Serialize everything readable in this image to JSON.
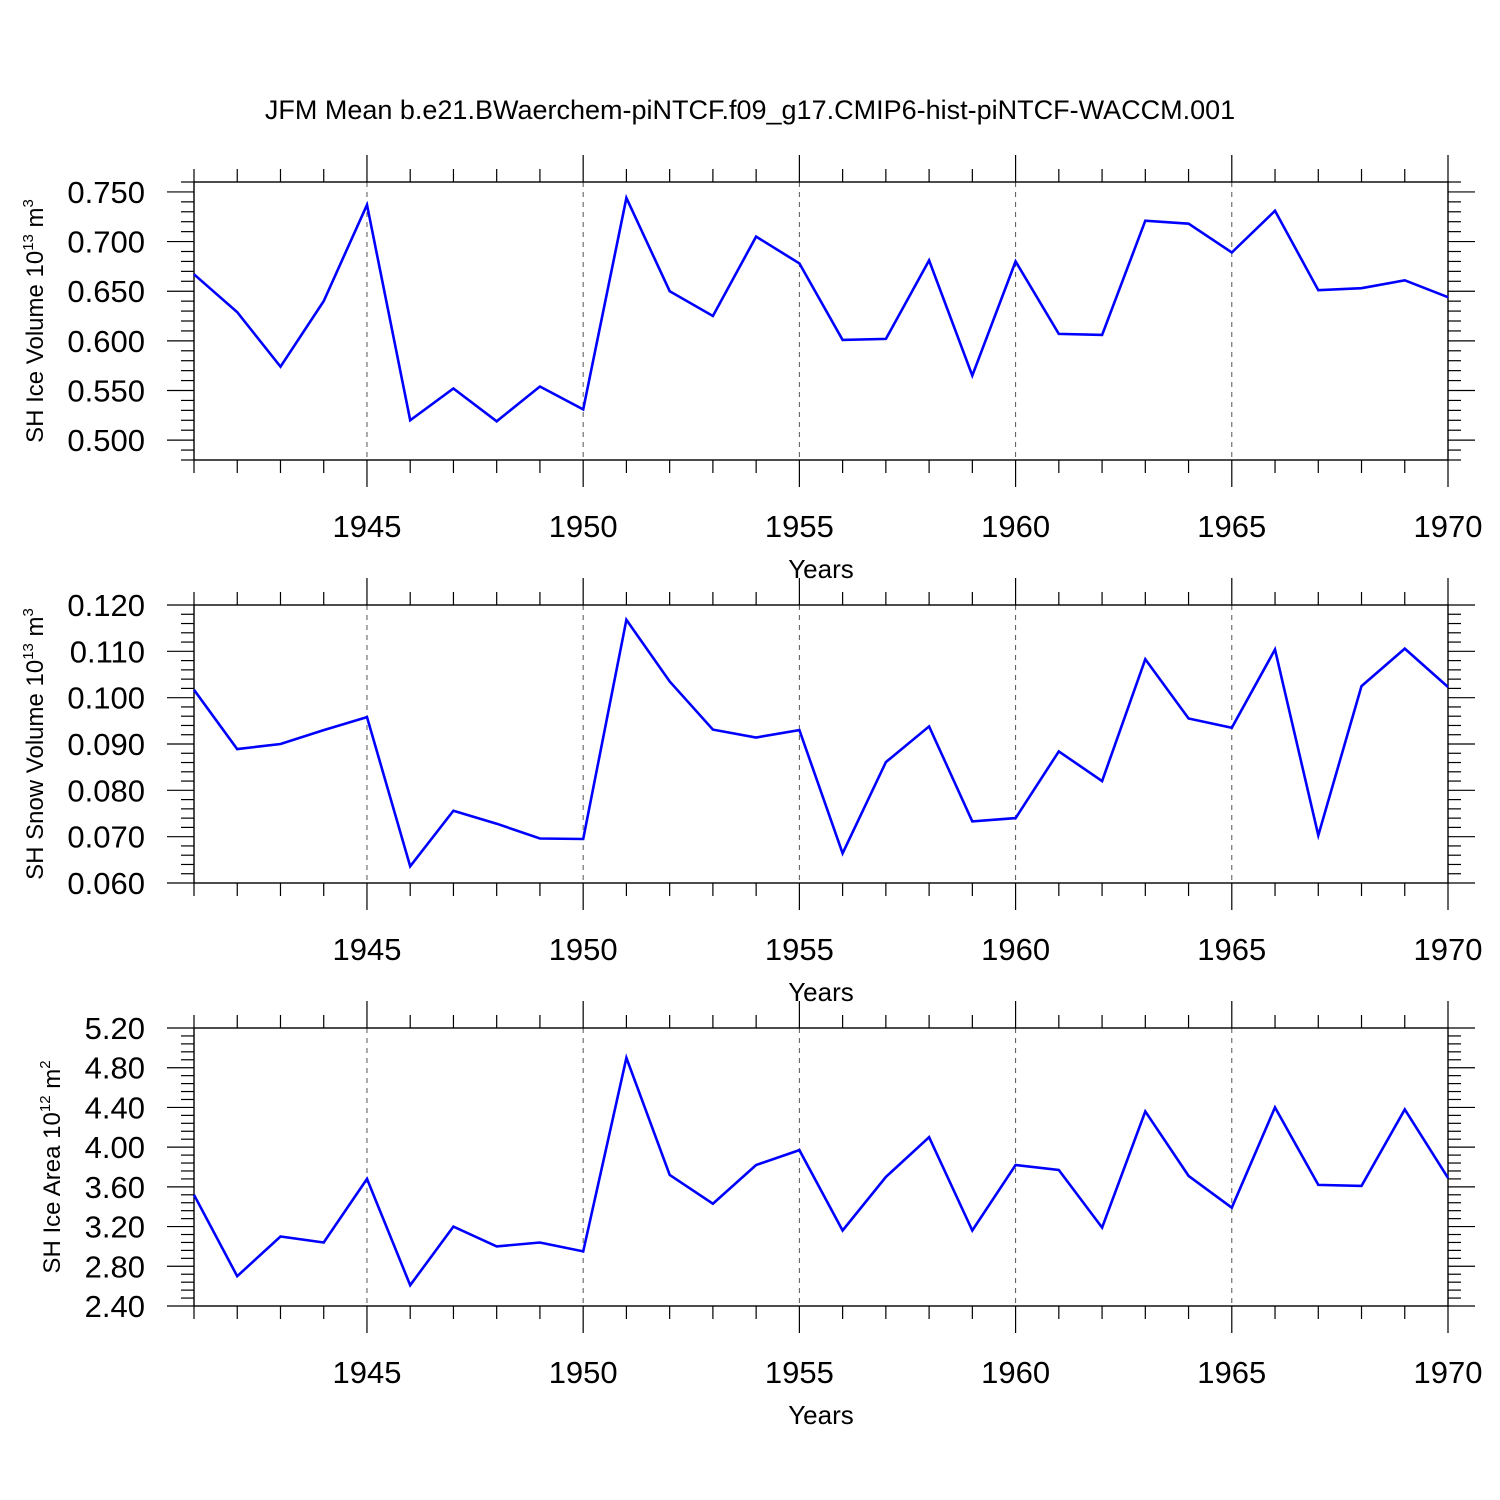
{
  "title": "JFM Mean b.e21.BWaerchem-piNTCF.f09_g17.CMIP6-hist-piNTCF-WACCM.001",
  "chart_data": [
    {
      "type": "line",
      "ylabel": {
        "text": "SH Ice Volume 10",
        "exponent": "13",
        "unit": " m",
        "unit_exponent": "3"
      },
      "xlabel": "Years",
      "xlim": [
        1941,
        1970
      ],
      "ylim": [
        0.48,
        0.76
      ],
      "yticks": [
        "0.500",
        "0.550",
        "0.600",
        "0.650",
        "0.700",
        "0.750"
      ],
      "xticks": [
        "1945",
        "1950",
        "1955",
        "1960",
        "1965",
        "1970"
      ],
      "color": "#0000ff",
      "x": [
        1941,
        1942,
        1943,
        1944,
        1945,
        1946,
        1947,
        1948,
        1949,
        1950,
        1951,
        1952,
        1953,
        1954,
        1955,
        1956,
        1957,
        1958,
        1959,
        1960,
        1961,
        1962,
        1963,
        1964,
        1965,
        1966,
        1967,
        1968,
        1969,
        1970
      ],
      "values": [
        0.667,
        0.629,
        0.574,
        0.64,
        0.737,
        0.52,
        0.552,
        0.519,
        0.554,
        0.531,
        0.744,
        0.65,
        0.625,
        0.705,
        0.678,
        0.601,
        0.602,
        0.681,
        0.565,
        0.68,
        0.607,
        0.606,
        0.721,
        0.718,
        0.689,
        0.731,
        0.651,
        0.653,
        0.661,
        0.644
      ]
    },
    {
      "type": "line",
      "ylabel": {
        "text": "SH Snow Volume 10",
        "exponent": "13",
        "unit": " m",
        "unit_exponent": "3"
      },
      "xlabel": "Years",
      "xlim": [
        1941,
        1970
      ],
      "ylim": [
        0.06,
        0.12
      ],
      "yticks": [
        "0.060",
        "0.070",
        "0.080",
        "0.090",
        "0.100",
        "0.110",
        "0.120"
      ],
      "xticks": [
        "1945",
        "1950",
        "1955",
        "1960",
        "1965",
        "1970"
      ],
      "color": "#0000ff",
      "x": [
        1941,
        1942,
        1943,
        1944,
        1945,
        1946,
        1947,
        1948,
        1949,
        1950,
        1951,
        1952,
        1953,
        1954,
        1955,
        1956,
        1957,
        1958,
        1959,
        1960,
        1961,
        1962,
        1963,
        1964,
        1965,
        1966,
        1967,
        1968,
        1969,
        1970
      ],
      "values": [
        0.1017,
        0.0889,
        0.09,
        0.093,
        0.0958,
        0.0636,
        0.0756,
        0.0728,
        0.0696,
        0.0695,
        0.1168,
        0.1035,
        0.0931,
        0.0914,
        0.093,
        0.0664,
        0.0861,
        0.0938,
        0.0733,
        0.074,
        0.0884,
        0.082,
        0.1083,
        0.0955,
        0.0935,
        0.1104,
        0.0703,
        0.1025,
        0.1106,
        0.1023
      ]
    },
    {
      "type": "line",
      "ylabel": {
        "text": "SH Ice Area 10",
        "exponent": "12",
        "unit": " m",
        "unit_exponent": "2"
      },
      "xlabel": "Years",
      "xlim": [
        1941,
        1970
      ],
      "ylim": [
        2.4,
        5.2
      ],
      "yticks": [
        "2.40",
        "2.80",
        "3.20",
        "3.60",
        "4.00",
        "4.40",
        "4.80",
        "5.20"
      ],
      "xticks": [
        "1945",
        "1950",
        "1955",
        "1960",
        "1965",
        "1970"
      ],
      "color": "#0000ff",
      "x": [
        1941,
        1942,
        1943,
        1944,
        1945,
        1946,
        1947,
        1948,
        1949,
        1950,
        1951,
        1952,
        1953,
        1954,
        1955,
        1956,
        1957,
        1958,
        1959,
        1960,
        1961,
        1962,
        1963,
        1964,
        1965,
        1966,
        1967,
        1968,
        1969,
        1970
      ],
      "values": [
        3.52,
        2.7,
        3.1,
        3.04,
        3.68,
        2.61,
        3.2,
        3.0,
        3.04,
        2.95,
        4.9,
        3.72,
        3.43,
        3.82,
        3.97,
        3.16,
        3.7,
        4.1,
        3.16,
        3.82,
        3.77,
        3.19,
        4.36,
        3.71,
        3.39,
        4.4,
        3.62,
        3.61,
        4.38,
        3.69
      ]
    }
  ]
}
